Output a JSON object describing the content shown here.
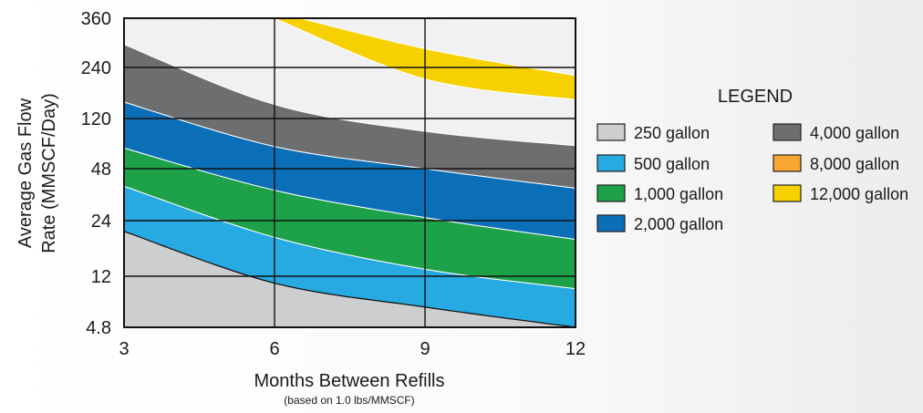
{
  "chart_data": {
    "type": "area",
    "title": "",
    "xlabel": "Months Between Refills",
    "xlabel_note": "(based on 1.0 lbs/MMSCF)",
    "ylabel": [
      "Average Gas Flow",
      "Rate (MMSCF/Day)"
    ],
    "x_ticks": [
      3,
      6,
      9,
      12
    ],
    "y_tick_labels": [
      "360",
      "240",
      "120",
      "48",
      "24",
      "12",
      "4.8"
    ],
    "xlim": [
      3,
      12
    ],
    "y_scale": "categorical-log",
    "grid": true,
    "legend": {
      "title": "LEGEND",
      "placement": "right",
      "columns": [
        [
          "250 gallon",
          "500 gallon",
          "1,000 gallon",
          "2,000 gallon"
        ],
        [
          "4,000 gallon",
          "8,000 gallon",
          "12,000 gallon"
        ]
      ]
    },
    "series": [
      {
        "name": "250 gallon",
        "color": "#cdced0",
        "x": [
          3,
          6,
          9,
          12
        ],
        "upper_y": [
          21,
          10.6,
          6.9,
          4.8
        ],
        "lower_y": [
          4.8,
          4.8,
          4.8,
          4.8
        ]
      },
      {
        "name": "500 gallon",
        "color": "#27a9e1",
        "x": [
          3,
          6,
          9,
          12
        ],
        "upper_y": [
          38,
          19.5,
          13.1,
          9.6
        ],
        "lower_y": [
          21,
          10.6,
          6.9,
          4.8
        ]
      },
      {
        "name": "1,000 gallon",
        "color": "#1da24a",
        "x": [
          3,
          6,
          9,
          12
        ],
        "upper_y": [
          70,
          36,
          25,
          19
        ],
        "lower_y": [
          38,
          19.5,
          13.1,
          9.6
        ]
      },
      {
        "name": "2,000 gallon",
        "color": "#0b6fb8",
        "x": [
          3,
          6,
          9,
          12
        ],
        "upper_y": [
          150,
          72,
          48,
          37
        ],
        "lower_y": [
          70,
          36,
          25,
          19
        ]
      },
      {
        "name": "4,000 gallon",
        "color": "#6d6e70",
        "x": [
          3,
          6,
          9,
          12
        ],
        "upper_y": [
          290,
          145,
          95,
          73
        ],
        "lower_y": [
          150,
          72,
          48,
          37
        ]
      },
      {
        "name": "12,000 gallon",
        "color": "#f7d000",
        "x": [
          6,
          9,
          12
        ],
        "upper_y": [
          380,
          280,
          215
        ],
        "lower_y": [
          360,
          205,
          155
        ]
      }
    ],
    "colors": {
      "8,000 gallon": "#f8a532",
      "empty_area": "#f1f1f3",
      "grid": "#111111"
    }
  }
}
